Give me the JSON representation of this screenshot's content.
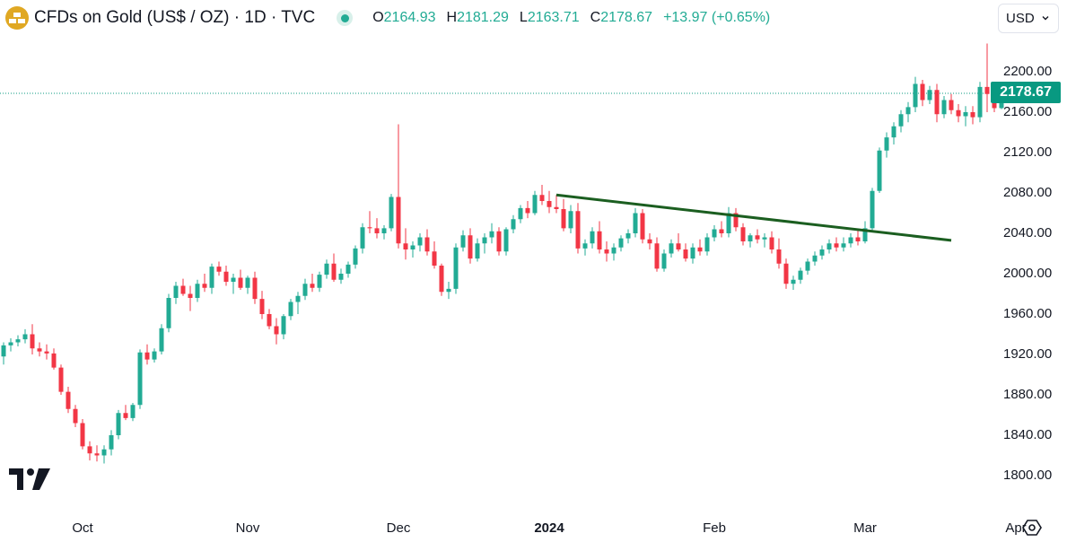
{
  "header": {
    "title": "CFDs on Gold (US$ / OZ) · 1D · TVC",
    "open_label": "O",
    "open": "2164.93",
    "high_label": "H",
    "high": "2181.29",
    "low_label": "L",
    "low": "2163.71",
    "close_label": "C",
    "close": "2178.67",
    "change": "+13.97 (+0.65%)"
  },
  "currency": {
    "selected": "USD"
  },
  "last_price_label": "2178.67",
  "colors": {
    "up": "#22ab94",
    "down": "#f23645",
    "trendline": "#1b5e20",
    "price_tag": "#089981"
  },
  "icons": [
    "gold-bars-icon",
    "live-dot-icon",
    "chevron-down-icon",
    "tradingview-logo-icon",
    "settings-icon"
  ],
  "chart_data": {
    "type": "candlestick",
    "title": "CFDs on Gold (US$ / OZ) · 1D · TVC",
    "y_ticks": [
      1800,
      1840,
      1880,
      1920,
      1960,
      2000,
      2040,
      2080,
      2120,
      2160,
      2200
    ],
    "y_tick_labels": [
      "1800.00",
      "1840.00",
      "1880.00",
      "1920.00",
      "1960.00",
      "2000.00",
      "2040.00",
      "2080.00",
      "2120.00",
      "2160.00",
      "2200.00"
    ],
    "x_ticks": [
      {
        "label": "Oct",
        "index": 11
      },
      {
        "label": "Nov",
        "index": 34
      },
      {
        "label": "Dec",
        "index": 55
      },
      {
        "label": "2024",
        "index": 76
      },
      {
        "label": "Feb",
        "index": 99
      },
      {
        "label": "Mar",
        "index": 120
      },
      {
        "label": "Apr",
        "index": 141
      }
    ],
    "ylim": [
      1775,
      2245
    ],
    "last_price": 2178.67,
    "candles": [
      [
        1918,
        1932,
        1910,
        1929
      ],
      [
        1929,
        1936,
        1923,
        1932
      ],
      [
        1932,
        1939,
        1928,
        1935
      ],
      [
        1935,
        1945,
        1931,
        1940
      ],
      [
        1940,
        1950,
        1920,
        1926
      ],
      [
        1926,
        1932,
        1918,
        1923
      ],
      [
        1923,
        1930,
        1915,
        1921
      ],
      [
        1921,
        1926,
        1905,
        1907
      ],
      [
        1907,
        1910,
        1880,
        1883
      ],
      [
        1883,
        1888,
        1862,
        1866
      ],
      [
        1866,
        1870,
        1848,
        1852
      ],
      [
        1852,
        1856,
        1826,
        1829
      ],
      [
        1829,
        1834,
        1815,
        1822
      ],
      [
        1822,
        1830,
        1814,
        1820
      ],
      [
        1820,
        1830,
        1812,
        1826
      ],
      [
        1826,
        1845,
        1820,
        1840
      ],
      [
        1840,
        1865,
        1836,
        1862
      ],
      [
        1862,
        1870,
        1855,
        1857
      ],
      [
        1857,
        1872,
        1854,
        1870
      ],
      [
        1870,
        1925,
        1866,
        1922
      ],
      [
        1922,
        1930,
        1910,
        1915
      ],
      [
        1915,
        1926,
        1912,
        1923
      ],
      [
        1923,
        1950,
        1920,
        1946
      ],
      [
        1946,
        1980,
        1942,
        1976
      ],
      [
        1976,
        1992,
        1970,
        1988
      ],
      [
        1988,
        1995,
        1978,
        1980
      ],
      [
        1980,
        1988,
        1963,
        1976
      ],
      [
        1976,
        1994,
        1972,
        1990
      ],
      [
        1990,
        2000,
        1982,
        1986
      ],
      [
        1986,
        2010,
        1980,
        2007
      ],
      [
        2007,
        2012,
        1998,
        2002
      ],
      [
        2002,
        2008,
        1988,
        1992
      ],
      [
        1992,
        2000,
        1980,
        1996
      ],
      [
        1996,
        2004,
        1984,
        1986
      ],
      [
        1986,
        1998,
        1980,
        1996
      ],
      [
        1996,
        2002,
        1970,
        1975
      ],
      [
        1975,
        1983,
        1955,
        1960
      ],
      [
        1960,
        1965,
        1945,
        1948
      ],
      [
        1948,
        1956,
        1930,
        1940
      ],
      [
        1940,
        1960,
        1935,
        1958
      ],
      [
        1958,
        1975,
        1954,
        1972
      ],
      [
        1972,
        1982,
        1960,
        1978
      ],
      [
        1978,
        1995,
        1974,
        1990
      ],
      [
        1990,
        2000,
        1982,
        1986
      ],
      [
        1986,
        2002,
        1982,
        1999
      ],
      [
        1999,
        2014,
        1995,
        2010
      ],
      [
        2010,
        2020,
        1992,
        1994
      ],
      [
        1994,
        2005,
        1990,
        2000
      ],
      [
        2000,
        2012,
        1996,
        2009
      ],
      [
        2009,
        2028,
        2005,
        2025
      ],
      [
        2025,
        2050,
        2020,
        2046
      ],
      [
        2046,
        2062,
        2040,
        2045
      ],
      [
        2045,
        2055,
        2035,
        2040
      ],
      [
        2040,
        2048,
        2034,
        2045
      ],
      [
        2045,
        2079,
        2042,
        2076
      ],
      [
        2076,
        2148,
        2025,
        2030
      ],
      [
        2030,
        2045,
        2014,
        2024
      ],
      [
        2024,
        2032,
        2016,
        2028
      ],
      [
        2028,
        2040,
        2022,
        2036
      ],
      [
        2036,
        2044,
        2018,
        2022
      ],
      [
        2022,
        2032,
        2005,
        2008
      ],
      [
        2008,
        2010,
        1978,
        1982
      ],
      [
        1982,
        1992,
        1975,
        1985
      ],
      [
        1985,
        2030,
        1980,
        2026
      ],
      [
        2026,
        2043,
        2022,
        2038
      ],
      [
        2038,
        2045,
        2010,
        2015
      ],
      [
        2015,
        2035,
        2012,
        2030
      ],
      [
        2030,
        2040,
        2020,
        2036
      ],
      [
        2036,
        2050,
        2030,
        2042
      ],
      [
        2042,
        2046,
        2018,
        2022
      ],
      [
        2022,
        2046,
        2018,
        2044
      ],
      [
        2044,
        2058,
        2040,
        2054
      ],
      [
        2054,
        2068,
        2050,
        2065
      ],
      [
        2065,
        2072,
        2055,
        2060
      ],
      [
        2060,
        2082,
        2058,
        2078
      ],
      [
        2078,
        2088,
        2068,
        2072
      ],
      [
        2072,
        2082,
        2060,
        2066
      ],
      [
        2066,
        2078,
        2060,
        2064
      ],
      [
        2064,
        2074,
        2042,
        2045
      ],
      [
        2045,
        2068,
        2040,
        2062
      ],
      [
        2062,
        2070,
        2020,
        2025
      ],
      [
        2025,
        2034,
        2018,
        2030
      ],
      [
        2030,
        2046,
        2025,
        2042
      ],
      [
        2042,
        2052,
        2020,
        2024
      ],
      [
        2024,
        2032,
        2012,
        2020
      ],
      [
        2020,
        2030,
        2013,
        2026
      ],
      [
        2026,
        2038,
        2022,
        2035
      ],
      [
        2035,
        2044,
        2030,
        2040
      ],
      [
        2040,
        2065,
        2036,
        2060
      ],
      [
        2060,
        2064,
        2030,
        2034
      ],
      [
        2034,
        2040,
        2024,
        2030
      ],
      [
        2030,
        2036,
        2002,
        2005
      ],
      [
        2005,
        2024,
        2002,
        2020
      ],
      [
        2020,
        2034,
        2016,
        2030
      ],
      [
        2030,
        2040,
        2022,
        2024
      ],
      [
        2024,
        2030,
        2012,
        2015
      ],
      [
        2015,
        2030,
        2010,
        2026
      ],
      [
        2026,
        2034,
        2018,
        2022
      ],
      [
        2022,
        2040,
        2018,
        2036
      ],
      [
        2036,
        2048,
        2032,
        2044
      ],
      [
        2044,
        2052,
        2036,
        2040
      ],
      [
        2040,
        2066,
        2036,
        2060
      ],
      [
        2060,
        2065,
        2042,
        2046
      ],
      [
        2046,
        2050,
        2028,
        2032
      ],
      [
        2032,
        2040,
        2026,
        2038
      ],
      [
        2038,
        2044,
        2030,
        2034
      ],
      [
        2034,
        2040,
        2026,
        2036
      ],
      [
        2036,
        2042,
        2020,
        2024
      ],
      [
        2024,
        2035,
        2005,
        2010
      ],
      [
        2010,
        2015,
        1985,
        1990
      ],
      [
        1990,
        1998,
        1984,
        1994
      ],
      [
        1994,
        2006,
        1990,
        2003
      ],
      [
        2003,
        2015,
        1999,
        2012
      ],
      [
        2012,
        2022,
        2008,
        2018
      ],
      [
        2018,
        2028,
        2014,
        2024
      ],
      [
        2024,
        2034,
        2020,
        2030
      ],
      [
        2030,
        2036,
        2022,
        2026
      ],
      [
        2026,
        2036,
        2022,
        2030
      ],
      [
        2030,
        2040,
        2026,
        2036
      ],
      [
        2036,
        2044,
        2028,
        2032
      ],
      [
        2032,
        2052,
        2030,
        2045
      ],
      [
        2045,
        2085,
        2042,
        2082
      ],
      [
        2082,
        2125,
        2080,
        2122
      ],
      [
        2122,
        2140,
        2115,
        2135
      ],
      [
        2135,
        2150,
        2128,
        2146
      ],
      [
        2146,
        2162,
        2140,
        2158
      ],
      [
        2158,
        2170,
        2150,
        2165
      ],
      [
        2165,
        2195,
        2160,
        2188
      ],
      [
        2188,
        2192,
        2166,
        2172
      ],
      [
        2172,
        2186,
        2168,
        2182
      ],
      [
        2182,
        2188,
        2150,
        2158
      ],
      [
        2158,
        2176,
        2154,
        2172
      ],
      [
        2172,
        2178,
        2158,
        2162
      ],
      [
        2162,
        2168,
        2150,
        2156
      ],
      [
        2156,
        2166,
        2146,
        2160
      ],
      [
        2160,
        2166,
        2148,
        2155
      ],
      [
        2155,
        2190,
        2150,
        2185
      ],
      [
        2185,
        2228,
        2160,
        2178
      ],
      [
        2178,
        2184,
        2160,
        2164
      ],
      [
        2164,
        2181,
        2163,
        2178
      ]
    ],
    "trendline": {
      "from": {
        "index": 77,
        "price": 2078
      },
      "to": {
        "index": 132,
        "price": 2033
      }
    }
  }
}
